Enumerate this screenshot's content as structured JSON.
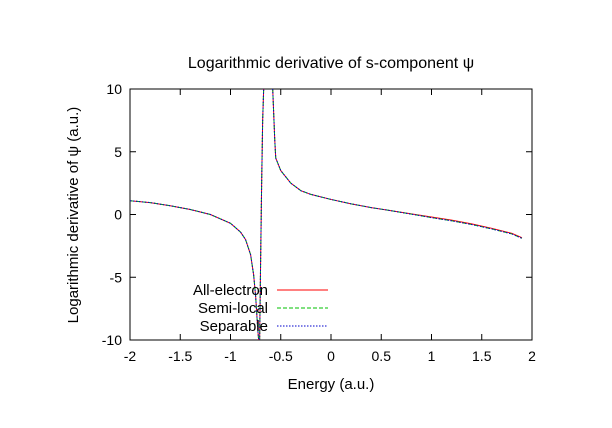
{
  "chart_data": {
    "type": "line",
    "title": "Logarithmic derivative of s-component ψ",
    "xlabel": "Energy (a.u.)",
    "ylabel": "Logarithmic derivative of ψ (a.u.)",
    "xlim": [
      -2,
      2
    ],
    "ylim": [
      -10,
      10
    ],
    "x_ticks": [
      -2,
      -1.5,
      -1,
      -0.5,
      0,
      0.5,
      1,
      1.5,
      2
    ],
    "x_tick_labels": [
      "-2",
      "-1.5",
      "-1",
      "-0.5",
      "0",
      "0.5",
      "1",
      "1.5",
      "2"
    ],
    "y_ticks": [
      -10,
      -5,
      0,
      5,
      10
    ],
    "y_tick_labels": [
      "-10",
      "-5",
      "0",
      "5",
      "10"
    ],
    "grid": false,
    "legend_position": "bottom-left",
    "series": [
      {
        "name": "All-electron",
        "color": "#ff0000",
        "dash": "solid",
        "x": [
          -2.0,
          -1.8,
          -1.6,
          -1.4,
          -1.2,
          -1.0,
          -0.9,
          -0.85,
          -0.8,
          -0.77,
          -0.75,
          -0.73,
          -0.72,
          -0.715,
          -0.71,
          -0.7,
          -0.69,
          -0.68,
          -0.67,
          -0.66,
          -0.65,
          -0.64,
          -0.62,
          -0.6,
          -0.58,
          -0.57,
          -0.56,
          -0.55,
          -0.5,
          -0.4,
          -0.3,
          -0.2,
          0.0,
          0.2,
          0.4,
          0.6,
          0.8,
          1.0,
          1.2,
          1.4,
          1.6,
          1.8,
          1.9
        ],
        "y": [
          1.1,
          0.95,
          0.7,
          0.4,
          0.0,
          -0.7,
          -1.4,
          -2.0,
          -3.2,
          -4.8,
          -6.5,
          -9.0,
          -10.0,
          null,
          -10.0,
          -3.5,
          2.5,
          7.5,
          10.0,
          null,
          null,
          null,
          null,
          null,
          10.0,
          8.0,
          6.0,
          4.5,
          3.5,
          2.5,
          1.9,
          1.6,
          1.2,
          0.85,
          0.55,
          0.3,
          0.05,
          -0.2,
          -0.45,
          -0.75,
          -1.1,
          -1.5,
          -1.85
        ]
      },
      {
        "name": "Semi-local",
        "color": "#00c000",
        "dash": "dashed",
        "x": [
          -2.0,
          -1.8,
          -1.6,
          -1.4,
          -1.2,
          -1.0,
          -0.9,
          -0.85,
          -0.8,
          -0.77,
          -0.75,
          -0.73,
          -0.72,
          -0.715,
          -0.71,
          -0.7,
          -0.69,
          -0.68,
          -0.67,
          -0.66,
          -0.65,
          -0.64,
          -0.62,
          -0.6,
          -0.58,
          -0.57,
          -0.56,
          -0.55,
          -0.5,
          -0.4,
          -0.3,
          -0.2,
          0.0,
          0.2,
          0.4,
          0.6,
          0.8,
          1.0,
          1.2,
          1.4,
          1.6,
          1.8,
          1.9
        ],
        "y": [
          1.1,
          0.95,
          0.7,
          0.4,
          0.0,
          -0.7,
          -1.4,
          -2.0,
          -3.2,
          -4.8,
          -6.5,
          -9.0,
          -10.0,
          null,
          -10.0,
          -3.5,
          2.5,
          7.5,
          10.0,
          null,
          null,
          null,
          null,
          null,
          10.0,
          8.0,
          6.0,
          4.5,
          3.5,
          2.5,
          1.9,
          1.6,
          1.2,
          0.85,
          0.55,
          0.3,
          0.03,
          -0.25,
          -0.5,
          -0.8,
          -1.15,
          -1.55,
          -1.9
        ]
      },
      {
        "name": "Separable",
        "color": "#0000cc",
        "dash": "dotted",
        "x": [
          -2.0,
          -1.8,
          -1.6,
          -1.4,
          -1.2,
          -1.0,
          -0.9,
          -0.85,
          -0.8,
          -0.77,
          -0.75,
          -0.73,
          -0.72,
          -0.715,
          -0.71,
          -0.7,
          -0.69,
          -0.68,
          -0.67,
          -0.66,
          -0.65,
          -0.64,
          -0.62,
          -0.6,
          -0.58,
          -0.57,
          -0.56,
          -0.55,
          -0.5,
          -0.4,
          -0.3,
          -0.2,
          0.0,
          0.2,
          0.4,
          0.6,
          0.8,
          1.0,
          1.2,
          1.4,
          1.6,
          1.8,
          1.9
        ],
        "y": [
          1.1,
          0.95,
          0.7,
          0.4,
          0.0,
          -0.7,
          -1.4,
          -2.0,
          -3.2,
          -4.8,
          -6.5,
          -9.0,
          -10.0,
          null,
          -10.0,
          -3.5,
          2.5,
          7.5,
          10.0,
          null,
          null,
          null,
          null,
          null,
          10.0,
          8.0,
          6.0,
          4.5,
          3.5,
          2.5,
          1.9,
          1.6,
          1.2,
          0.85,
          0.55,
          0.3,
          0.03,
          -0.25,
          -0.5,
          -0.8,
          -1.15,
          -1.55,
          -1.9
        ]
      }
    ]
  }
}
